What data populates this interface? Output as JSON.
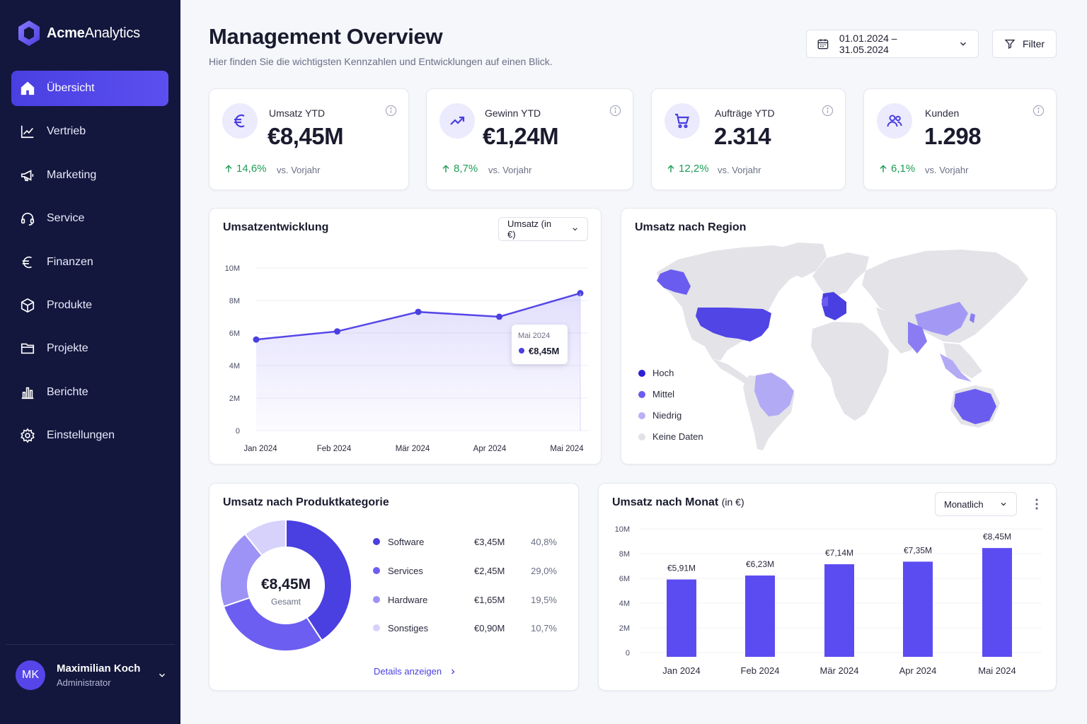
{
  "app": {
    "brand_bold": "Acme",
    "brand_light": "Analytics"
  },
  "sidebar": {
    "items": [
      {
        "label": "Übersicht",
        "icon": "home-icon",
        "active": true
      },
      {
        "label": "Vertrieb",
        "icon": "trend-chart-icon"
      },
      {
        "label": "Marketing",
        "icon": "megaphone-icon"
      },
      {
        "label": "Service",
        "icon": "headset-icon"
      },
      {
        "label": "Finanzen",
        "icon": "euro-icon"
      },
      {
        "label": "Produkte",
        "icon": "box-icon"
      },
      {
        "label": "Projekte",
        "icon": "folder-icon"
      },
      {
        "label": "Berichte",
        "icon": "bar-chart-icon"
      },
      {
        "label": "Einstellungen",
        "icon": "gear-icon"
      }
    ],
    "user": {
      "initials": "MK",
      "name": "Maximilian Koch",
      "role": "Administrator"
    }
  },
  "header": {
    "title": "Management Overview",
    "subtitle": "Hier finden Sie die wichtigsten Kennzahlen und Entwicklungen auf einen Blick.",
    "date_range": "01.01.2024 – 31.05.2024",
    "filter_label": "Filter"
  },
  "kpis": [
    {
      "label": "Umsatz YTD",
      "value": "€8,45M",
      "change": "14,6%",
      "compare": "vs. Vorjahr",
      "icon": "euro-icon"
    },
    {
      "label": "Gewinn YTD",
      "value": "€1,24M",
      "change": "8,7%",
      "compare": "vs. Vorjahr",
      "icon": "trend-up-icon"
    },
    {
      "label": "Aufträge YTD",
      "value": "2.314",
      "change": "12,2%",
      "compare": "vs. Vorjahr",
      "icon": "cart-icon"
    },
    {
      "label": "Kunden",
      "value": "1.298",
      "change": "6,1%",
      "compare": "vs. Vorjahr",
      "icon": "users-icon"
    }
  ],
  "revenue_trend": {
    "title": "Umsatzentwicklung",
    "select_label": "Umsatz (in €)",
    "tooltip": {
      "month": "Mai 2024",
      "value": "€8,45M"
    }
  },
  "region": {
    "title": "Umsatz nach Region",
    "legend": [
      {
        "label": "Hoch",
        "color": "#2a1fd6"
      },
      {
        "label": "Mittel",
        "color": "#6b5cf0"
      },
      {
        "label": "Niedrig",
        "color": "#b9b1f7"
      },
      {
        "label": "Keine Daten",
        "color": "#e1e1e6"
      }
    ]
  },
  "category": {
    "title": "Umsatz nach Produktkategorie",
    "total": "€8,45M",
    "total_label": "Gesamt",
    "rows": [
      {
        "label": "Software",
        "value": "€3,45M",
        "pct": "40,8%",
        "color": "#4a3fe0"
      },
      {
        "label": "Services",
        "value": "€2,45M",
        "pct": "29,0%",
        "color": "#6c5ef0"
      },
      {
        "label": "Hardware",
        "value": "€1,65M",
        "pct": "19,5%",
        "color": "#9d92f5"
      },
      {
        "label": "Sonstiges",
        "value": "€0,90M",
        "pct": "10,7%",
        "color": "#d6d2fb"
      }
    ],
    "details_label": "Details anzeigen"
  },
  "monthly": {
    "title": "Umsatz nach Monat",
    "title_unit": "(in €)",
    "select_label": "Monatlich"
  },
  "chart_data": [
    {
      "type": "line",
      "title": "Umsatzentwicklung",
      "categories": [
        "Jan 2024",
        "Feb 2024",
        "Mär 2024",
        "Apr 2024",
        "Mai 2024"
      ],
      "values": [
        5.6,
        6.1,
        7.3,
        7.0,
        8.45
      ],
      "yticks": [
        "0",
        "2M",
        "4M",
        "6M",
        "8M",
        "10M"
      ],
      "ylim": [
        0,
        10
      ]
    },
    {
      "type": "pie",
      "title": "Umsatz nach Produktkategorie",
      "categories": [
        "Software",
        "Services",
        "Hardware",
        "Sonstiges"
      ],
      "values": [
        40.8,
        29.0,
        19.5,
        10.7
      ]
    },
    {
      "type": "bar",
      "title": "Umsatz nach Monat",
      "categories": [
        "Jan 2024",
        "Feb 2024",
        "Mär 2024",
        "Apr 2024",
        "Mai 2024"
      ],
      "values": [
        5.91,
        6.23,
        7.14,
        7.35,
        8.45
      ],
      "labels": [
        "€5,91M",
        "€6,23M",
        "€7,14M",
        "€7,35M",
        "€8,45M"
      ],
      "yticks": [
        "0",
        "2M",
        "4M",
        "6M",
        "8M",
        "10M"
      ],
      "ylim": [
        0,
        10
      ]
    }
  ]
}
